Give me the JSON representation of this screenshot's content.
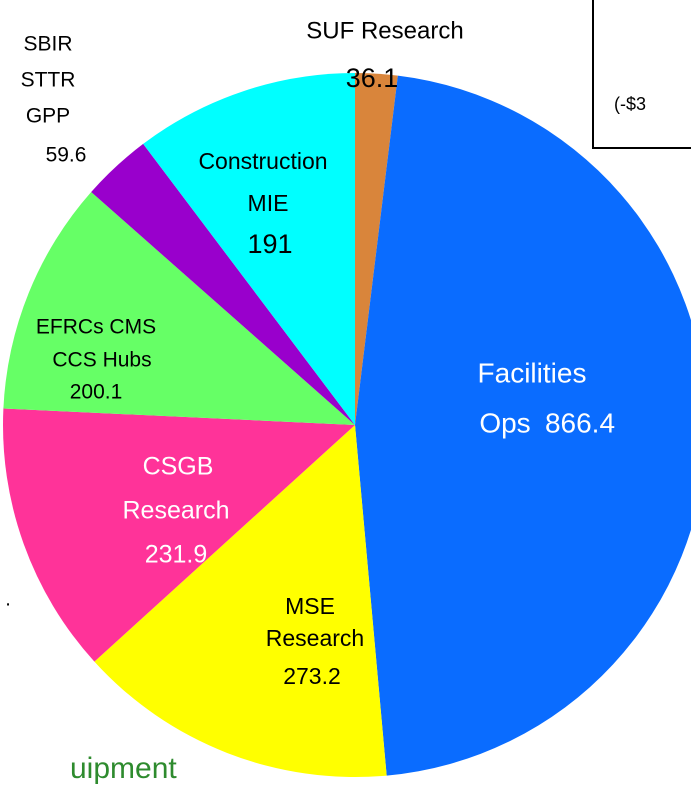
{
  "chart_data": {
    "type": "pie",
    "categories": [
      [
        "SUF Research"
      ],
      [
        "Facilities",
        "Ops"
      ],
      [
        "MSE",
        "Research"
      ],
      [
        "CSGB",
        "Research"
      ],
      [
        "EFRCs CMS",
        "CCS Hubs"
      ],
      [
        "SBIR",
        "STTR",
        "GPP"
      ],
      [
        "Construction",
        "MIE"
      ]
    ],
    "values": [
      36.1,
      866.4,
      273.2,
      231.9,
      200.1,
      59.6,
      191
    ],
    "colors": [
      "#d9853b",
      "#0a6cff",
      "#ffff00",
      "#ff3399",
      "#66ff66",
      "#9900cc",
      "#00ffff"
    ]
  },
  "fragments": {
    "box_text": "(-$3",
    "footer": "uipment",
    "dot": "."
  }
}
